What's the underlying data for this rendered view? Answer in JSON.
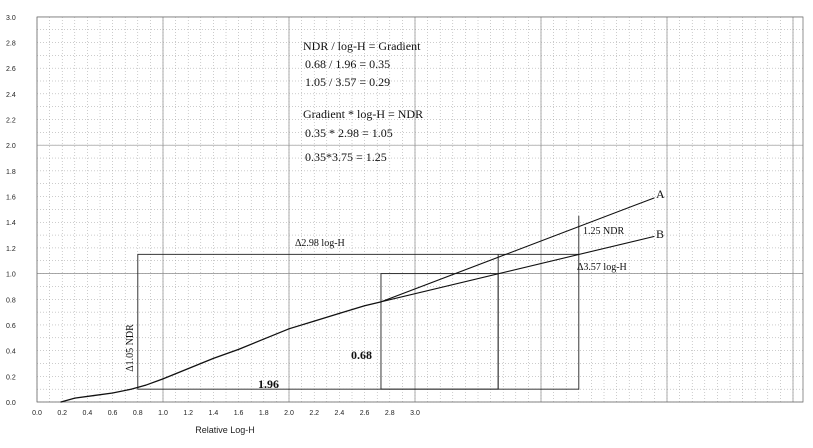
{
  "chart_data": {
    "type": "line",
    "title": "",
    "xlabel": "Relative Log-H",
    "ylabel": "",
    "xlim": [
      0,
      3.0
    ],
    "ylim": [
      0,
      3.0
    ],
    "grid": true,
    "x_ticks": [
      "0.0",
      "0.2",
      "0.4",
      "0.6",
      "0.8",
      "1.0",
      "1.2",
      "1.4",
      "1.6",
      "1.8",
      "2.0",
      "2.2",
      "2.4",
      "2.6",
      "2.8",
      "3.0"
    ],
    "y_ticks": [
      "0.0",
      "0.2",
      "0.4",
      "0.6",
      "0.8",
      "1.0",
      "1.2",
      "1.4",
      "1.6",
      "1.8",
      "2.0",
      "2.2",
      "2.4",
      "2.6",
      "2.8",
      "3.0"
    ],
    "curve": {
      "x": [
        0.19,
        0.3,
        0.45,
        0.6,
        0.75,
        0.86,
        1.0,
        1.2,
        1.4,
        1.6,
        1.8,
        2.0,
        2.2,
        2.4,
        2.6,
        2.73
      ],
      "y": [
        0.0,
        0.03,
        0.05,
        0.07,
        0.1,
        0.13,
        0.18,
        0.26,
        0.34,
        0.41,
        0.49,
        0.57,
        0.63,
        0.69,
        0.75,
        0.78
      ]
    },
    "series": [
      {
        "name": "A",
        "x": [
          2.73,
          4.9
        ],
        "y": [
          0.78,
          1.59
        ]
      },
      {
        "name": "B",
        "x": [
          2.73,
          4.9
        ],
        "y": [
          0.78,
          1.29
        ]
      }
    ],
    "annotations": {
      "formula1": "NDR / log-H = Gradient",
      "formula2": "0.68 / 1.96 = 0.35",
      "formula3": "1.05 / 3.57 = 0.29",
      "formula4": "Gradient * log-H = NDR",
      "formula5": "0.35 * 2.98 = 1.05",
      "formula6": "0.35*3.75 = 1.25",
      "delta_ndr": "Δ1.05 NDR",
      "delta_logh_298": "Δ2.98 log-H",
      "delta_logh_357": "Δ3.57 log-H",
      "ndr_125": "1.25 NDR",
      "val_068": "0.68",
      "val_196": "1.96"
    },
    "reference_boxes": [
      {
        "x0": 0.8,
        "x1": 4.3,
        "y0": 0.1,
        "y1": 1.15
      },
      {
        "x0": 2.73,
        "x1": 3.66,
        "y0": 0.1,
        "y1": 1.0
      }
    ],
    "reference_lines": [
      {
        "x0": 3.66,
        "x1": 3.66,
        "y0": 0.1,
        "y1": 1.15
      },
      {
        "x0": 4.3,
        "x1": 4.3,
        "y0": 1.15,
        "y1": 1.45
      }
    ]
  }
}
